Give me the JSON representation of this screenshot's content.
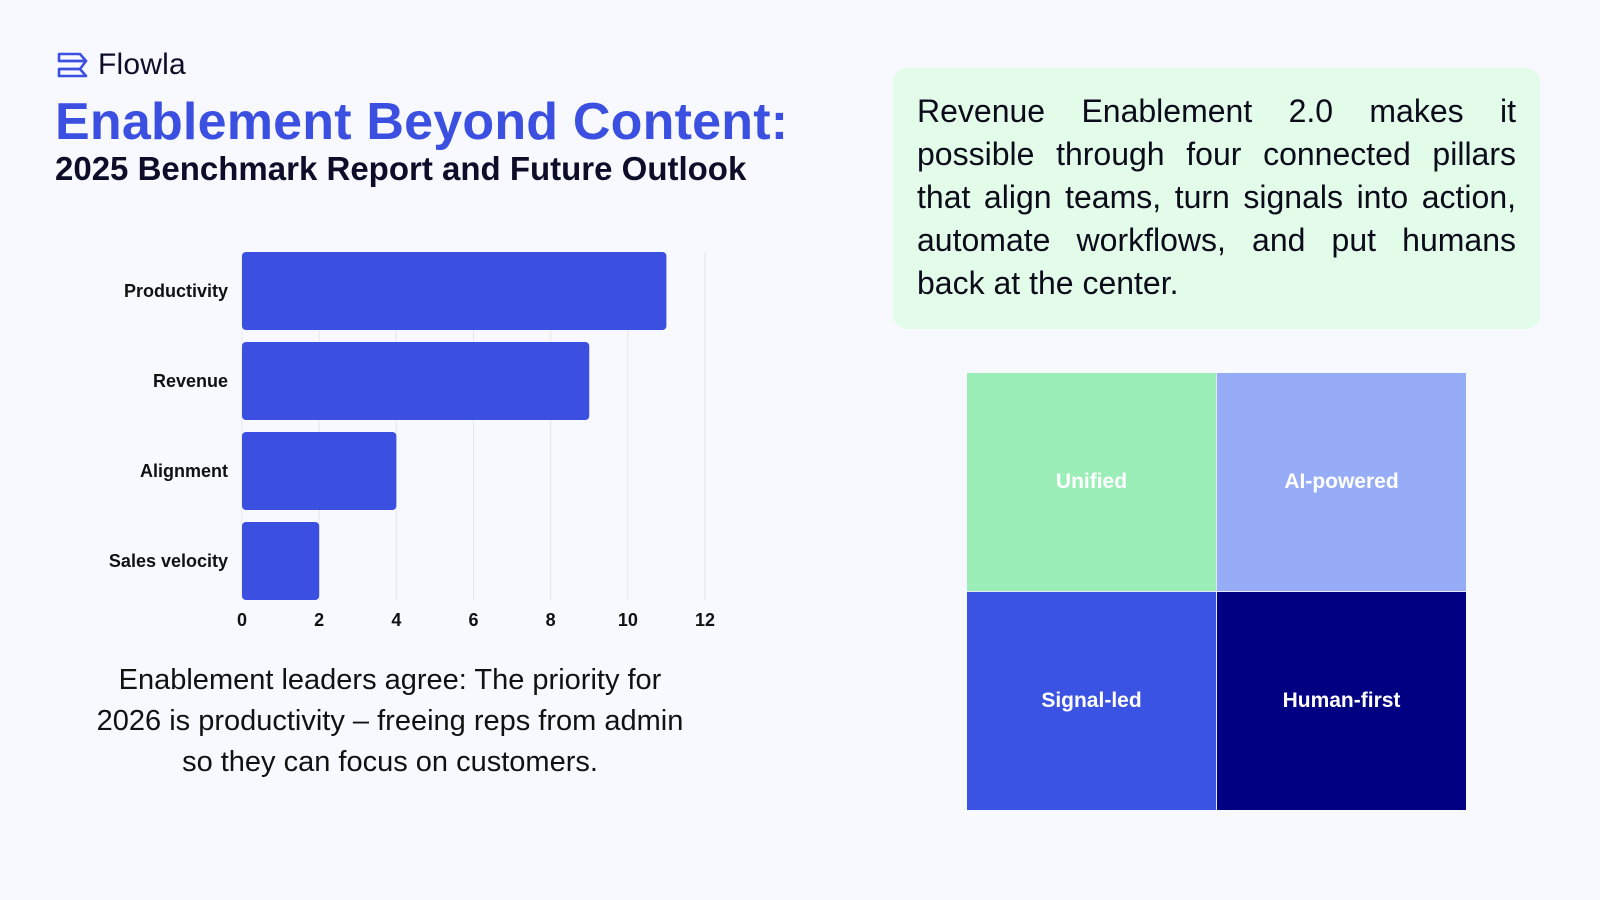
{
  "brand": {
    "name": "Flowla",
    "logo_icon": "stacked-chevron-icon",
    "accent_color": "#3b4fe0"
  },
  "header": {
    "title": "Enablement Beyond Content:",
    "subtitle": "2025 Benchmark Report and Future Outlook"
  },
  "chart_data": {
    "type": "bar",
    "orientation": "horizontal",
    "categories": [
      "Productivity",
      "Revenue",
      "Alignment",
      "Sales velocity"
    ],
    "values": [
      11,
      9,
      4,
      2
    ],
    "title": "",
    "xlabel": "",
    "ylabel": "",
    "xlim": [
      0,
      12
    ],
    "xticks": [
      0,
      2,
      4,
      6,
      8,
      10,
      12
    ],
    "grid": "vertical",
    "bar_color": "#3b50e0",
    "legend": "none"
  },
  "caption": "Enablement leaders agree: The priority for 2026 is productivity – freeing reps from admin so they can focus on customers.",
  "quote": "Revenue Enablement 2.0 makes it possible through four connected pillars that align teams, turn signals into action, automate workflows, and put humans back at the center.",
  "pillars": [
    {
      "label": "Unified",
      "color": "#9beeb8"
    },
    {
      "label": "AI-powered",
      "color": "#97acf6"
    },
    {
      "label": "Signal-led",
      "color": "#3b53e2"
    },
    {
      "label": "Human-first",
      "color": "#020082"
    }
  ]
}
